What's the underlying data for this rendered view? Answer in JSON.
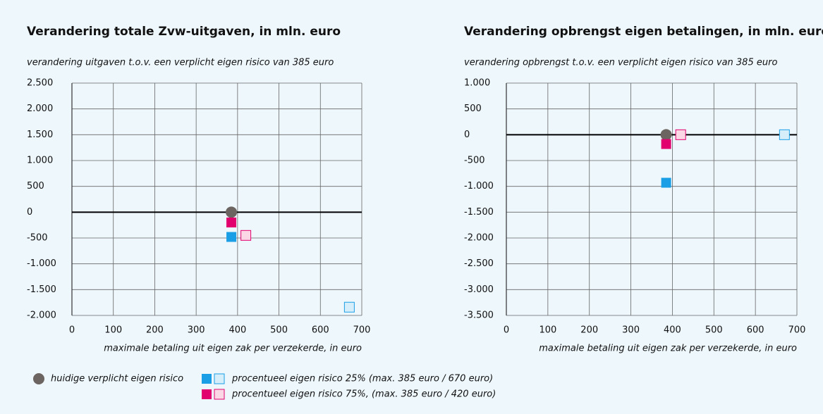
{
  "chart_data": [
    {
      "type": "scatter",
      "title": "Verandering totale Zvw-uitgaven, in mln. euro",
      "subtitle": "verandering uitgaven t.o.v. een verplicht eigen risico van 385 euro",
      "x_label": "maximale betaling uit eigen zak per verzekerde, in euro",
      "xlim": [
        0,
        700
      ],
      "xticks": [
        0,
        100,
        200,
        300,
        400,
        500,
        600,
        700
      ],
      "ylim": [
        -2000,
        2500
      ],
      "yticks": [
        {
          "value": 2500,
          "label": "2.500"
        },
        {
          "value": 2000,
          "label": "2.000"
        },
        {
          "value": 1500,
          "label": "1.500"
        },
        {
          "value": 1000,
          "label": "1.000"
        },
        500,
        0,
        -500,
        {
          "value": -1000,
          "label": "-1.000"
        },
        {
          "value": -1500,
          "label": "-1.500"
        },
        {
          "value": -2000,
          "label": "-2.000"
        }
      ],
      "grid": true,
      "series": [
        {
          "marker": "circle",
          "colors": [
            "#6b6460"
          ],
          "x": [
            385
          ],
          "values": [
            0
          ]
        },
        {
          "marker": "square",
          "colors": [
            "#1a9fe6",
            "#d6eefa"
          ],
          "x": [
            385,
            670
          ],
          "values": [
            -480,
            -1840
          ]
        },
        {
          "marker": "square",
          "colors": [
            "#e2006e",
            "#fbd6e4"
          ],
          "x": [
            385,
            420
          ],
          "values": [
            -200,
            -450
          ]
        }
      ]
    },
    {
      "type": "scatter",
      "title": "Verandering opbrengst eigen betalingen, in mln. euro",
      "subtitle": "verandering opbrengst t.o.v. een verplicht eigen risico van 385 euro",
      "x_label": "maximale betaling uit eigen zak per verzekerde, in euro",
      "xlim": [
        0,
        700
      ],
      "xticks": [
        0,
        100,
        200,
        300,
        400,
        500,
        600,
        700
      ],
      "ylim": [
        -3500,
        1000
      ],
      "yticks": [
        {
          "value": 1000,
          "label": "1.000"
        },
        500,
        0,
        -500,
        {
          "value": -1000,
          "label": "-1.000"
        },
        {
          "value": -1500,
          "label": "-1.500"
        },
        {
          "value": -2000,
          "label": "-2.000"
        },
        {
          "value": -2500,
          "label": "-2.500"
        },
        {
          "value": -3000,
          "label": "-3.000"
        },
        {
          "value": -3500,
          "label": "-3.500"
        }
      ],
      "grid": true,
      "series": [
        {
          "marker": "circle",
          "colors": [
            "#6b6460"
          ],
          "x": [
            385
          ],
          "values": [
            0
          ]
        },
        {
          "marker": "square",
          "colors": [
            "#1a9fe6",
            "#d6eefa"
          ],
          "x": [
            385,
            670
          ],
          "values": [
            -930,
            0
          ]
        },
        {
          "marker": "square",
          "colors": [
            "#e2006e",
            "#fbd6e4"
          ],
          "x": [
            385,
            420
          ],
          "values": [
            -180,
            0
          ]
        }
      ]
    }
  ],
  "legend": [
    {
      "label": "huidige verplicht eigen risico",
      "marker": "circle",
      "colors": [
        "#6b6460"
      ]
    },
    {
      "label": "procentueel eigen risico 25% (max. 385 euro / 670 euro)",
      "marker": "square",
      "colors": [
        "#1a9fe6",
        "#d6eefa"
      ]
    },
    {
      "label": "procentueel eigen risico 75%, (max. 385 euro / 420 euro)",
      "marker": "square",
      "colors": [
        "#e2006e",
        "#fbd6e4"
      ]
    }
  ]
}
